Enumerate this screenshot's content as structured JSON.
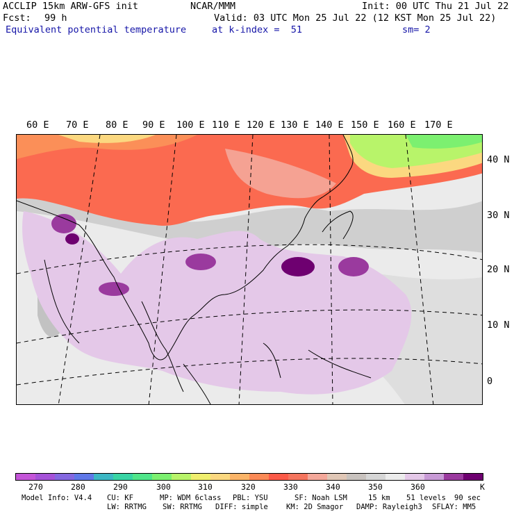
{
  "header": {
    "title_left": "ACCLIP 15km ARW-GFS init",
    "title_center": "NCAR/MMM",
    "init": "Init: 00 UTC Thu 21 Jul 22",
    "fcst_label": "Fcst:",
    "fcst_value": "99 h",
    "valid": "Valid: 03 UTC Mon 25 Jul 22 (12 KST Mon 25 Jul 22)",
    "field": "Equivalent potential temperature",
    "level": "at k-index =  51",
    "smooth": "sm= 2"
  },
  "map": {
    "lon_labels": [
      "60 E",
      "70 E",
      "80 E",
      "90 E",
      "100 E",
      "110 E",
      "120 E",
      "130 E",
      "140 E",
      "150 E",
      "160 E",
      "170 E"
    ],
    "lat_labels": [
      "40 N",
      "30 N",
      "20 N",
      "10 N",
      "0"
    ]
  },
  "colorbar": {
    "colors": [
      "#c455d8",
      "#a552d8",
      "#8468e0",
      "#5f78e8",
      "#3cb7c4",
      "#38d4a4",
      "#50e58a",
      "#7cf070",
      "#b8f46a",
      "#f0ef6e",
      "#fbd880",
      "#fbb468",
      "#fb8a56",
      "#fb5a48",
      "#f5755e",
      "#f4a89a",
      "#e0c7b6",
      "#c8c2be",
      "#d6d6d6",
      "#ececec",
      "#e4c8e8",
      "#c89ad6",
      "#9a3a9e",
      "#6e0070"
    ],
    "ticks": [
      "270",
      "280",
      "290",
      "300",
      "310",
      "320",
      "330",
      "340",
      "350",
      "360"
    ],
    "unit": "K"
  },
  "footer": {
    "line1": [
      "Model Info: V4.4",
      "CU: KF",
      "MP: WDM 6class",
      "PBL: YSU",
      "SF: Noah LSM",
      "15 km",
      "51 levels",
      "90 sec"
    ],
    "line2": [
      "LW: RRTMG",
      "SW: RRTMG",
      "DIFF: simple",
      "KM: 2D Smagor",
      "DAMP: Rayleigh3",
      "SFLAY: MM5"
    ]
  }
}
